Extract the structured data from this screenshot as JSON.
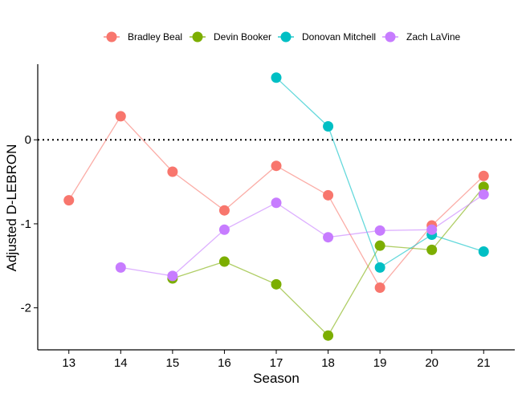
{
  "chart_data": {
    "type": "line",
    "title": "",
    "xlabel": "Season",
    "ylabel": "Adjusted D-LEBRON",
    "x": [
      13,
      14,
      15,
      16,
      17,
      18,
      19,
      20,
      21
    ],
    "xlim": [
      12.4,
      21.6
    ],
    "ylim": [
      -2.5,
      0.9
    ],
    "y_ticks": [
      -2,
      -1,
      0
    ],
    "y_tick_labels": [
      "-2",
      "-1",
      "0"
    ],
    "reference_line": {
      "y": 0,
      "style": "dotted"
    },
    "legend_position": "top",
    "series": [
      {
        "name": "Bradley Beal",
        "color": "#F8766D",
        "x": [
          13,
          14,
          15,
          16,
          17,
          18,
          19,
          20,
          21
        ],
        "values": [
          -0.72,
          0.28,
          -0.38,
          -0.84,
          -0.31,
          -0.66,
          -1.76,
          -1.02,
          -0.43
        ]
      },
      {
        "name": "Devin Booker",
        "color": "#7CAE00",
        "x": [
          15,
          16,
          17,
          18,
          19,
          20,
          21
        ],
        "values": [
          -1.65,
          -1.45,
          -1.72,
          -2.33,
          -1.26,
          -1.31,
          -0.56
        ]
      },
      {
        "name": "Donovan Mitchell",
        "color": "#00BFC4",
        "x": [
          17,
          18,
          19,
          20,
          21
        ],
        "values": [
          0.74,
          0.16,
          -1.52,
          -1.13,
          -1.33
        ]
      },
      {
        "name": "Zach LaVine",
        "color": "#C77CFF",
        "x": [
          14,
          15,
          16,
          17,
          18,
          19,
          20,
          21
        ],
        "values": [
          -1.52,
          -1.62,
          -1.07,
          -0.75,
          -1.16,
          -1.08,
          -1.07,
          -0.65
        ]
      }
    ]
  }
}
